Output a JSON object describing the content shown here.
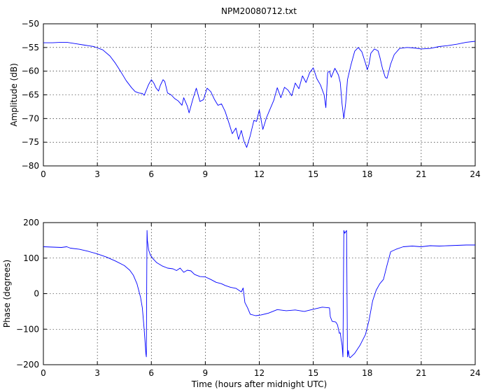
{
  "chart_data": [
    {
      "type": "line",
      "title": "NPM20080712.txt",
      "xlabel": "",
      "ylabel": "Amplitude (dB)",
      "xlim": [
        0,
        24
      ],
      "ylim": [
        -80,
        -50
      ],
      "grid": true,
      "x_ticks": [
        0,
        3,
        6,
        9,
        12,
        15,
        18,
        21,
        24
      ],
      "y_ticks": [
        -80,
        -75,
        -70,
        -65,
        -60,
        -55,
        -50
      ],
      "x_tick_labels": [
        "0",
        "3",
        "6",
        "9",
        "12",
        "15",
        "18",
        "21",
        "24"
      ],
      "y_tick_labels": [
        "−80",
        "−75",
        "−70",
        "−65",
        "−60",
        "−55",
        "−50"
      ],
      "line_color": "#0000ff",
      "series": [
        {
          "x": [
            0,
            0.5,
            1.0,
            1.3,
            1.8,
            2.3,
            2.8,
            3.3,
            3.7,
            4.0,
            4.3,
            4.6,
            4.9,
            5.1,
            5.3,
            5.5,
            5.6,
            5.7,
            5.85,
            6.0,
            6.15,
            6.25,
            6.4,
            6.5,
            6.65,
            6.75,
            6.9,
            7.1,
            7.3,
            7.5,
            7.7,
            7.8,
            8.0,
            8.1,
            8.3,
            8.5,
            8.7,
            8.9,
            9.1,
            9.3,
            9.5,
            9.7,
            9.9,
            10.1,
            10.3,
            10.5,
            10.7,
            10.85,
            11.0,
            11.15,
            11.3,
            11.5,
            11.7,
            11.85,
            12.0,
            12.2,
            12.4,
            12.6,
            12.8,
            13.0,
            13.2,
            13.4,
            13.6,
            13.8,
            14.0,
            14.2,
            14.4,
            14.6,
            14.8,
            15.0,
            15.2,
            15.4,
            15.6,
            15.7,
            15.8,
            15.9,
            16.0,
            16.2,
            16.4,
            16.5,
            16.6,
            16.7,
            16.8,
            16.9,
            17.1,
            17.3,
            17.5,
            17.7,
            17.9,
            18.0,
            18.1,
            18.2,
            18.4,
            18.6,
            18.7,
            18.85,
            19.0,
            19.1,
            19.3,
            19.5,
            19.8,
            20.2,
            20.6,
            21.0,
            21.5,
            22.0,
            22.5,
            23.0,
            23.5,
            24.0
          ],
          "y": [
            -54,
            -54,
            -53.9,
            -53.9,
            -54.2,
            -54.5,
            -54.8,
            -55.5,
            -56.8,
            -58.3,
            -60.1,
            -62,
            -63.5,
            -64.3,
            -64.6,
            -64.7,
            -65.1,
            -64.2,
            -62.8,
            -61.8,
            -62.6,
            -63.5,
            -64.2,
            -63.0,
            -61.8,
            -62.2,
            -64.6,
            -65.0,
            -65.8,
            -66.3,
            -67.2,
            -65.6,
            -67.4,
            -68.8,
            -66.0,
            -63.6,
            -66.4,
            -66.0,
            -63.6,
            -64.3,
            -65.9,
            -67.2,
            -66.9,
            -68.5,
            -70.8,
            -73.2,
            -72.0,
            -74.4,
            -72.5,
            -74.8,
            -76.1,
            -73.6,
            -70.4,
            -70.6,
            -68.2,
            -72.3,
            -69.8,
            -68.0,
            -66.2,
            -63.5,
            -65.6,
            -63.4,
            -64.0,
            -65.2,
            -62.5,
            -63.7,
            -61.0,
            -62.4,
            -60.3,
            -59.3,
            -61.6,
            -62.9,
            -65.0,
            -67.7,
            -60.3,
            -60.0,
            -61.3,
            -59.4,
            -60.8,
            -62.4,
            -67.0,
            -70.0,
            -66.8,
            -61.8,
            -58.6,
            -55.8,
            -55.0,
            -55.9,
            -58.3,
            -59.7,
            -58.5,
            -56.2,
            -55.3,
            -55.7,
            -57.0,
            -59.5,
            -61.3,
            -61.5,
            -58.5,
            -56.5,
            -55.2,
            -55.0,
            -55.1,
            -55.3,
            -55.2,
            -54.8,
            -54.6,
            -54.3,
            -53.9,
            -53.7
          ]
        }
      ]
    },
    {
      "type": "line",
      "title": "",
      "xlabel": "Time (hours after midnight UTC)",
      "ylabel": "Phase (degrees)",
      "xlim": [
        0,
        24
      ],
      "ylim": [
        -200,
        200
      ],
      "grid": true,
      "x_ticks": [
        0,
        3,
        6,
        9,
        12,
        15,
        18,
        21,
        24
      ],
      "y_ticks": [
        -200,
        -100,
        0,
        100,
        200
      ],
      "x_tick_labels": [
        "0",
        "3",
        "6",
        "9",
        "12",
        "15",
        "18",
        "21",
        "24"
      ],
      "y_tick_labels": [
        "−200",
        "−100",
        "0",
        "100",
        "200"
      ],
      "line_color": "#0000ff",
      "series": [
        {
          "x": [
            0,
            0.5,
            1.0,
            1.3,
            1.5,
            2.0,
            2.5,
            3.0,
            3.5,
            4.0,
            4.5,
            4.8,
            5.0,
            5.2,
            5.4,
            5.5,
            5.6,
            5.7,
            5.72,
            5.74,
            5.76,
            5.78,
            5.85,
            5.95,
            6.1,
            6.3,
            6.6,
            6.9,
            7.2,
            7.4,
            7.6,
            7.8,
            8.0,
            8.2,
            8.4,
            8.7,
            9.0,
            9.3,
            9.6,
            9.9,
            10.1,
            10.4,
            10.7,
            11.0,
            11.1,
            11.2,
            11.35,
            11.5,
            11.8,
            12.1,
            12.5,
            13.0,
            13.5,
            14.0,
            14.5,
            15.0,
            15.5,
            15.9,
            15.95,
            16.05,
            16.25,
            16.35,
            16.45,
            16.5,
            16.55,
            16.6,
            16.65,
            16.7,
            16.75,
            16.8,
            16.85,
            16.9,
            16.95,
            17.0,
            17.05,
            17.1,
            17.3,
            17.6,
            17.9,
            18.1,
            18.3,
            18.5,
            18.7,
            18.9,
            19.1,
            19.3,
            19.6,
            20.0,
            20.5,
            21.0,
            21.5,
            22.0,
            22.5,
            23.0,
            23.5,
            24.0
          ],
          "y": [
            132,
            131,
            130,
            132,
            128,
            125,
            119,
            112,
            103,
            92,
            79,
            66,
            52,
            28,
            -10,
            -40,
            -100,
            -170,
            -178,
            10,
            178,
            150,
            123,
            108,
            98,
            87,
            78,
            72,
            70,
            65,
            72,
            60,
            66,
            64,
            54,
            48,
            47,
            40,
            32,
            28,
            23,
            18,
            15,
            5,
            16,
            -25,
            -40,
            -58,
            -62,
            -60,
            -55,
            -45,
            -48,
            -46,
            -50,
            -44,
            -38,
            -40,
            -65,
            -78,
            -80,
            -88,
            -112,
            -110,
            -130,
            -145,
            -178,
            178,
            170,
            174,
            178,
            -178,
            -160,
            -178,
            -180,
            -178,
            -168,
            -145,
            -115,
            -75,
            -20,
            10,
            28,
            40,
            80,
            118,
            125,
            132,
            134,
            132,
            135,
            134,
            135,
            136,
            137,
            137
          ]
        }
      ]
    }
  ]
}
